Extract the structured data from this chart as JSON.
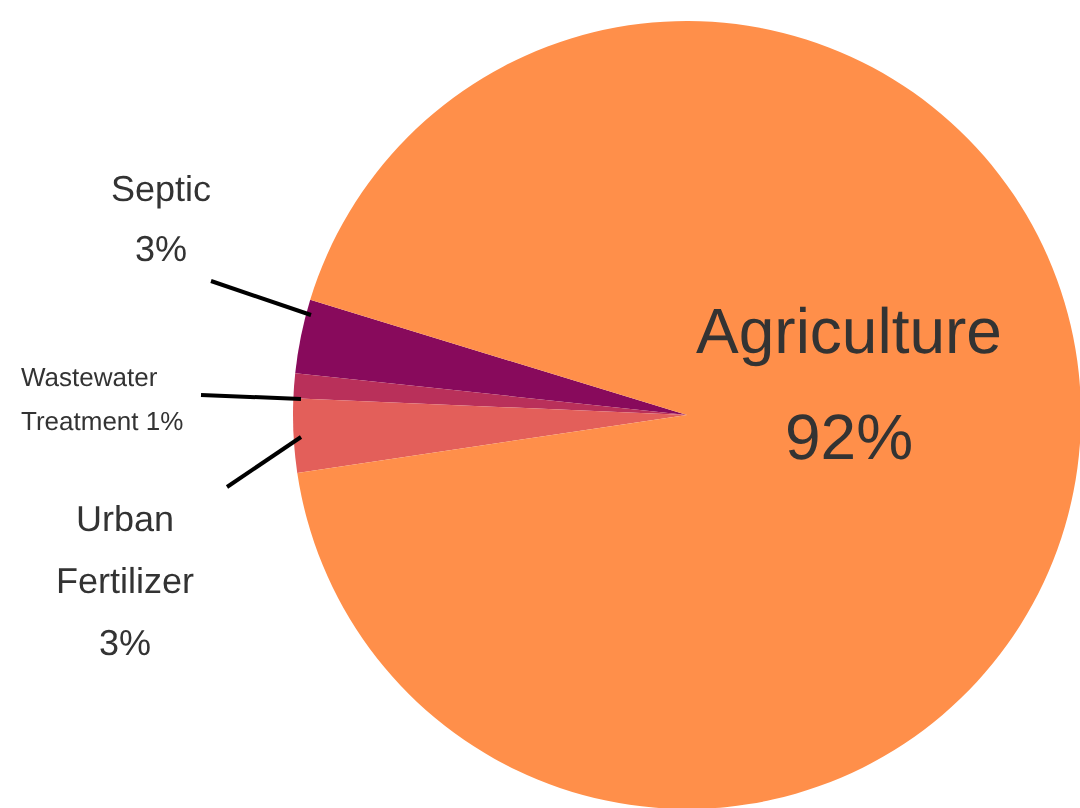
{
  "chart_data": {
    "type": "pie",
    "categories": [
      "Septic",
      "Wastewater Treatment",
      "Urban Fertilizer",
      "Agriculture"
    ],
    "values": [
      3,
      1,
      3,
      92
    ],
    "value_labels": [
      "3%",
      "1%",
      "3%",
      "92%"
    ],
    "colors": [
      "#880a5c",
      "#b9305a",
      "#e35f5a",
      "#ff8f4a"
    ]
  }
}
